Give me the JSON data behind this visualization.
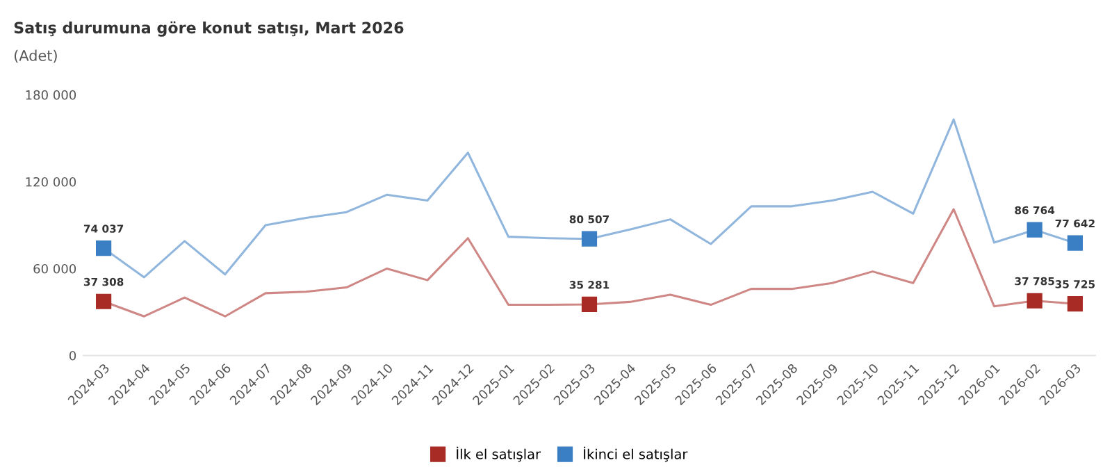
{
  "chart_data": {
    "type": "line",
    "title": "Satış durumuna göre konut satışı, Mart 2026",
    "subtitle": "(Adet)",
    "categories": [
      "2024-03",
      "2024-04",
      "2024-05",
      "2024-06",
      "2024-07",
      "2024-08",
      "2024-09",
      "2024-10",
      "2024-11",
      "2024-12",
      "2025-01",
      "2025-02",
      "2025-03",
      "2025-04",
      "2025-05",
      "2025-06",
      "2025-07",
      "2025-08",
      "2025-09",
      "2025-10",
      "2025-11",
      "2025-12",
      "2026-01",
      "2026-02",
      "2026-03"
    ],
    "series": [
      {
        "name": "İlk el satışlar",
        "color": "#a82b25",
        "values": [
          37308,
          27000,
          40000,
          27000,
          43000,
          44000,
          47000,
          60000,
          52000,
          81000,
          35000,
          35000,
          35281,
          37000,
          42000,
          35000,
          46000,
          46000,
          50000,
          58000,
          50000,
          101000,
          34000,
          37785,
          35725
        ],
        "value_labels": [
          "37 308",
          null,
          null,
          null,
          null,
          null,
          null,
          null,
          null,
          null,
          null,
          null,
          "35 281",
          null,
          null,
          null,
          null,
          null,
          null,
          null,
          null,
          null,
          null,
          "37 785",
          "35 725"
        ]
      },
      {
        "name": "İkinci el satışlar",
        "color": "#3a7ec4",
        "values": [
          74037,
          54000,
          79000,
          56000,
          90000,
          95000,
          99000,
          111000,
          107000,
          140000,
          82000,
          81000,
          80507,
          87000,
          94000,
          77000,
          103000,
          103000,
          107000,
          113000,
          98000,
          163000,
          78000,
          86764,
          77642
        ],
        "value_labels": [
          "74 037",
          null,
          null,
          null,
          null,
          null,
          null,
          null,
          null,
          null,
          null,
          null,
          "80 507",
          null,
          null,
          null,
          null,
          null,
          null,
          null,
          null,
          null,
          null,
          "86 764",
          "77 642"
        ]
      }
    ],
    "ylim": [
      0,
      180000
    ],
    "yticks": [
      {
        "value": 0,
        "label": "0"
      },
      {
        "value": 60000,
        "label": "60 000"
      },
      {
        "value": 120000,
        "label": "120 000"
      },
      {
        "value": 180000,
        "label": "180 000"
      }
    ],
    "grid": false,
    "legend": "bottom"
  }
}
